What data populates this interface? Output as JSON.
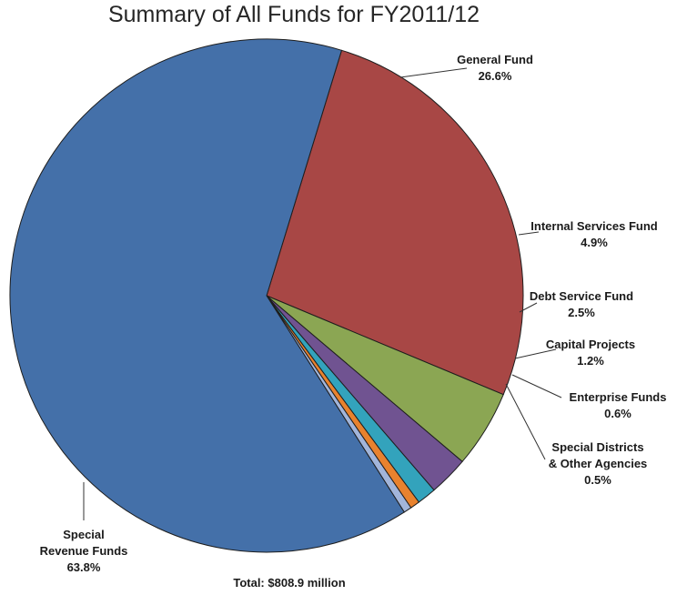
{
  "chart_data": {
    "type": "pie",
    "title": "Summary of All Funds for FY2011/12",
    "total_label": "Total: $808.9 million",
    "slices": [
      {
        "name": "General Fund",
        "label_lines": [
          "General Fund"
        ],
        "value_label": "26.6%",
        "value": 26.6,
        "color": "#A84745"
      },
      {
        "name": "Internal Services Fund",
        "label_lines": [
          "Internal Services Fund"
        ],
        "value_label": "4.9%",
        "value": 4.9,
        "color": "#8BA653"
      },
      {
        "name": "Debt Service Fund",
        "label_lines": [
          "Debt Service Fund"
        ],
        "value_label": "2.5%",
        "value": 2.5,
        "color": "#705391"
      },
      {
        "name": "Capital Projects",
        "label_lines": [
          "Capital Projects"
        ],
        "value_label": "1.2%",
        "value": 1.2,
        "color": "#33A3BC"
      },
      {
        "name": "Enterprise Funds",
        "label_lines": [
          "Enterprise Funds"
        ],
        "value_label": "0.6%",
        "value": 0.6,
        "color": "#E8822E"
      },
      {
        "name": "Special Districts & Other Agencies",
        "label_lines": [
          "Special Districts",
          "& Other Agencies"
        ],
        "value_label": "0.5%",
        "value": 0.5,
        "color": "#A2B5DA"
      },
      {
        "name": "Special Revenue Funds",
        "label_lines": [
          "Special",
          "Revenue Funds"
        ],
        "value_label": "63.8%",
        "value": 63.8,
        "color": "#4470A9"
      }
    ]
  }
}
